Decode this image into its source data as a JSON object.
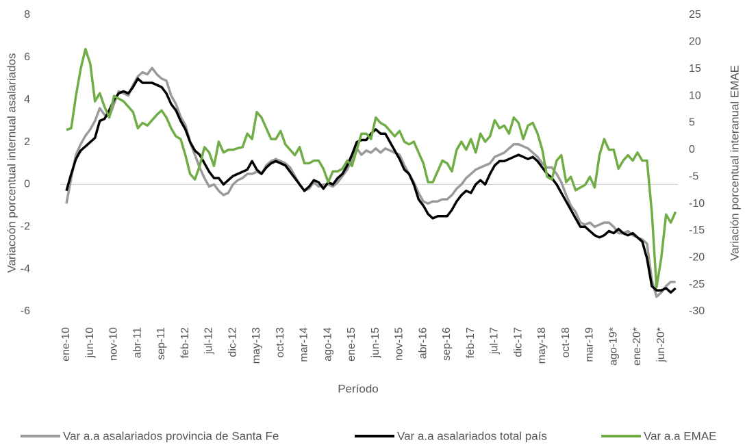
{
  "chart_data": {
    "type": "line",
    "x_label": "Período",
    "y_label": "Variacoón porcentual internual asalariados",
    "y2_label": "Variación porcentual interanual EMAE",
    "categories": [
      "ene-10",
      null,
      null,
      null,
      null,
      "jun-10",
      null,
      null,
      null,
      null,
      "nov-10",
      null,
      null,
      null,
      null,
      "abr-11",
      null,
      null,
      null,
      null,
      "sep-11",
      null,
      null,
      null,
      null,
      "feb-12",
      null,
      null,
      null,
      null,
      "jul-12",
      null,
      null,
      null,
      null,
      "dic-12",
      null,
      null,
      null,
      null,
      "may-13",
      null,
      null,
      null,
      null,
      "oct-13",
      null,
      null,
      null,
      null,
      "mar-14",
      null,
      null,
      null,
      null,
      "ago-14",
      null,
      null,
      null,
      null,
      "ene-15",
      null,
      null,
      null,
      null,
      "jun-15",
      null,
      null,
      null,
      null,
      "nov-15",
      null,
      null,
      null,
      null,
      "abr-16",
      null,
      null,
      null,
      null,
      "sep-16",
      null,
      null,
      null,
      null,
      "feb-17",
      null,
      null,
      null,
      null,
      "jul-17",
      null,
      null,
      null,
      null,
      "dic-17",
      null,
      null,
      null,
      null,
      "may-18",
      null,
      null,
      null,
      null,
      "oct-18",
      null,
      null,
      null,
      null,
      "mar-19",
      null,
      null,
      null,
      null,
      "ago-19*",
      null,
      null,
      null,
      null,
      "ene-20*",
      null,
      null,
      null,
      null,
      "jun-20*",
      null,
      null,
      null
    ],
    "ylim": [
      -6,
      8
    ],
    "yticks": [
      -6,
      -4,
      -2,
      0,
      2,
      4,
      6,
      8
    ],
    "y2lim": [
      -30,
      25
    ],
    "y2ticks": [
      -30,
      -25,
      -20,
      -15,
      -10,
      -5,
      0,
      5,
      10,
      15,
      20,
      25
    ],
    "grid": false,
    "legend": "bottom",
    "series": [
      {
        "name": "Var a.a asalariados provincia de Santa Fe",
        "color": "#9a9a9a",
        "values": [
          -0.9,
          0.3,
          1.4,
          1.9,
          2.3,
          2.6,
          3.0,
          3.6,
          3.3,
          3.2,
          3.8,
          4.4,
          4.3,
          4.2,
          4.7,
          5.1,
          5.3,
          5.2,
          5.5,
          5.2,
          5.0,
          4.9,
          4.2,
          3.8,
          3.2,
          2.8,
          2.0,
          1.4,
          0.8,
          0.3,
          -0.1,
          0.0,
          -0.3,
          -0.5,
          -0.4,
          0.0,
          0.2,
          0.3,
          0.5,
          0.5,
          0.6,
          0.5,
          0.9,
          1.1,
          1.2,
          1.1,
          1.0,
          0.8,
          0.4,
          0.0,
          -0.3,
          -0.2,
          0.1,
          -0.1,
          0.0,
          0.0,
          -0.1,
          0.1,
          0.4,
          0.7,
          1.2,
          1.7,
          1.4,
          1.6,
          1.5,
          1.7,
          1.5,
          1.7,
          1.6,
          1.5,
          1.4,
          0.9,
          0.5,
          0.1,
          -0.4,
          -0.8,
          -0.9,
          -0.8,
          -0.8,
          -0.7,
          -0.7,
          -0.5,
          -0.2,
          0.0,
          0.3,
          0.5,
          0.7,
          0.8,
          0.9,
          1.0,
          1.3,
          1.4,
          1.5,
          1.7,
          1.9,
          1.9,
          1.8,
          1.7,
          1.5,
          1.3,
          1.0,
          0.8,
          0.8,
          0.5,
          0.1,
          -0.5,
          -1.0,
          -1.3,
          -1.8,
          -1.9,
          -1.8,
          -2.0,
          -1.9,
          -1.8,
          -1.8,
          -2.0,
          -2.3,
          -2.3,
          -2.2,
          -2.4,
          -2.5,
          -2.6,
          -2.8,
          -4.5,
          -5.3,
          -5.1,
          -4.8,
          -4.6,
          -4.6
        ]
      },
      {
        "name": "Var a.a asalariados total país",
        "color": "#000000",
        "values": [
          -0.3,
          0.5,
          1.2,
          1.6,
          1.8,
          2.0,
          2.2,
          3.0,
          3.1,
          3.5,
          4.0,
          4.3,
          4.4,
          4.3,
          4.6,
          5.0,
          4.8,
          4.8,
          4.8,
          4.7,
          4.6,
          4.3,
          3.8,
          3.5,
          3.0,
          2.6,
          2.0,
          1.6,
          1.4,
          1.0,
          0.6,
          0.3,
          0.3,
          0.0,
          0.2,
          0.4,
          0.5,
          0.6,
          0.7,
          1.1,
          0.7,
          0.5,
          0.8,
          1.0,
          1.1,
          1.0,
          0.9,
          0.6,
          0.3,
          0.0,
          -0.3,
          -0.1,
          0.2,
          0.1,
          -0.2,
          0.1,
          0.0,
          0.3,
          0.5,
          0.9,
          1.4,
          2.0,
          2.1,
          2.1,
          2.4,
          2.6,
          2.4,
          2.4,
          2.0,
          1.6,
          1.2,
          0.7,
          0.5,
          0.0,
          -0.7,
          -1.0,
          -1.4,
          -1.6,
          -1.5,
          -1.5,
          -1.5,
          -1.2,
          -0.8,
          -0.5,
          -0.3,
          -0.4,
          0.0,
          0.2,
          0.0,
          0.5,
          0.9,
          1.1,
          1.1,
          1.2,
          1.3,
          1.4,
          1.3,
          1.2,
          1.3,
          1.1,
          0.8,
          0.5,
          0.3,
          0.0,
          -0.4,
          -0.8,
          -1.2,
          -1.6,
          -2.0,
          -2.0,
          -2.2,
          -2.4,
          -2.5,
          -2.4,
          -2.2,
          -2.3,
          -2.1,
          -2.3,
          -2.4,
          -2.3,
          -2.5,
          -2.7,
          -3.5,
          -4.8,
          -5.0,
          -5.0,
          -4.9,
          -5.1,
          -4.9
        ]
      },
      {
        "name": "Var a.a EMAE",
        "color": "#70ad47",
        "axis": "y2",
        "values": [
          3.7,
          4,
          10,
          15,
          18.7,
          16,
          9,
          10.5,
          8,
          6,
          10,
          9.5,
          9,
          8,
          7,
          4,
          5,
          4.5,
          5.5,
          6.5,
          7.3,
          6,
          4,
          2.5,
          2,
          -1,
          -4.5,
          -5.5,
          -3,
          0.5,
          -0.5,
          -3,
          1.5,
          -0.5,
          0,
          0,
          0.3,
          0.5,
          3,
          2,
          7,
          6,
          4,
          2,
          2,
          3.5,
          1,
          0,
          -1,
          0.5,
          -2.5,
          -2.5,
          -2,
          -2,
          -3.5,
          -6,
          -4,
          -4,
          -3.5,
          -2,
          -3,
          0,
          3,
          3,
          2,
          6,
          5,
          4.5,
          3.5,
          2.5,
          3.5,
          1.5,
          1,
          1.5,
          -0.5,
          -2.5,
          -6,
          -6,
          -4,
          -2,
          -2.5,
          -4,
          0,
          1.5,
          0,
          2,
          -0.5,
          3,
          1.5,
          2.5,
          5.5,
          4,
          4.5,
          3,
          6,
          5,
          2,
          4.5,
          5,
          3,
          0,
          -5,
          -5.5,
          -2,
          -1,
          -6,
          -5,
          -7.5,
          -7,
          -6.5,
          -5,
          -7,
          -1,
          2,
          0,
          0,
          -3.5,
          -2,
          -1,
          -2,
          -0.5,
          -2,
          -2,
          -11.5,
          -25.5,
          -20,
          -12,
          -13.5,
          -11.5
        ]
      }
    ]
  }
}
